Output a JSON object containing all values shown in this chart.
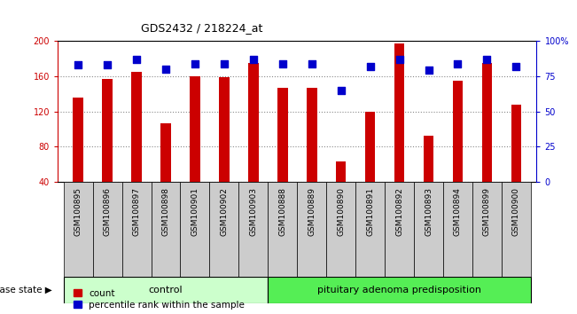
{
  "title": "GDS2432 / 218224_at",
  "samples": [
    "GSM100895",
    "GSM100896",
    "GSM100897",
    "GSM100898",
    "GSM100901",
    "GSM100902",
    "GSM100903",
    "GSM100888",
    "GSM100889",
    "GSM100890",
    "GSM100891",
    "GSM100892",
    "GSM100893",
    "GSM100894",
    "GSM100899",
    "GSM100900"
  ],
  "counts": [
    136,
    157,
    165,
    107,
    160,
    159,
    175,
    147,
    147,
    63,
    120,
    197,
    93,
    155,
    175,
    128
  ],
  "percentiles": [
    83,
    83,
    87,
    80,
    84,
    84,
    87,
    84,
    84,
    65,
    82,
    87,
    79,
    84,
    87,
    82
  ],
  "control_count": 7,
  "disease_count": 9,
  "ylim_left": [
    40,
    200
  ],
  "ylim_right": [
    0,
    100
  ],
  "yticks_left": [
    40,
    80,
    120,
    160,
    200
  ],
  "yticks_right": [
    0,
    25,
    50,
    75,
    100
  ],
  "ytick_right_labels": [
    "0",
    "25",
    "50",
    "75",
    "100%"
  ],
  "bar_color": "#cc0000",
  "dot_color": "#0000cc",
  "control_bg": "#ccffcc",
  "disease_bg": "#55ee55",
  "tick_bg": "#cccccc",
  "grid_color": "#888888",
  "bar_width": 0.35,
  "dot_size": 30,
  "legend_count_label": "count",
  "legend_pct_label": "percentile rank within the sample",
  "disease_state_label": "disease state",
  "control_label": "control",
  "disease_label": "pituitary adenoma predisposition",
  "figsize": [
    6.51,
    3.54
  ],
  "dpi": 100
}
